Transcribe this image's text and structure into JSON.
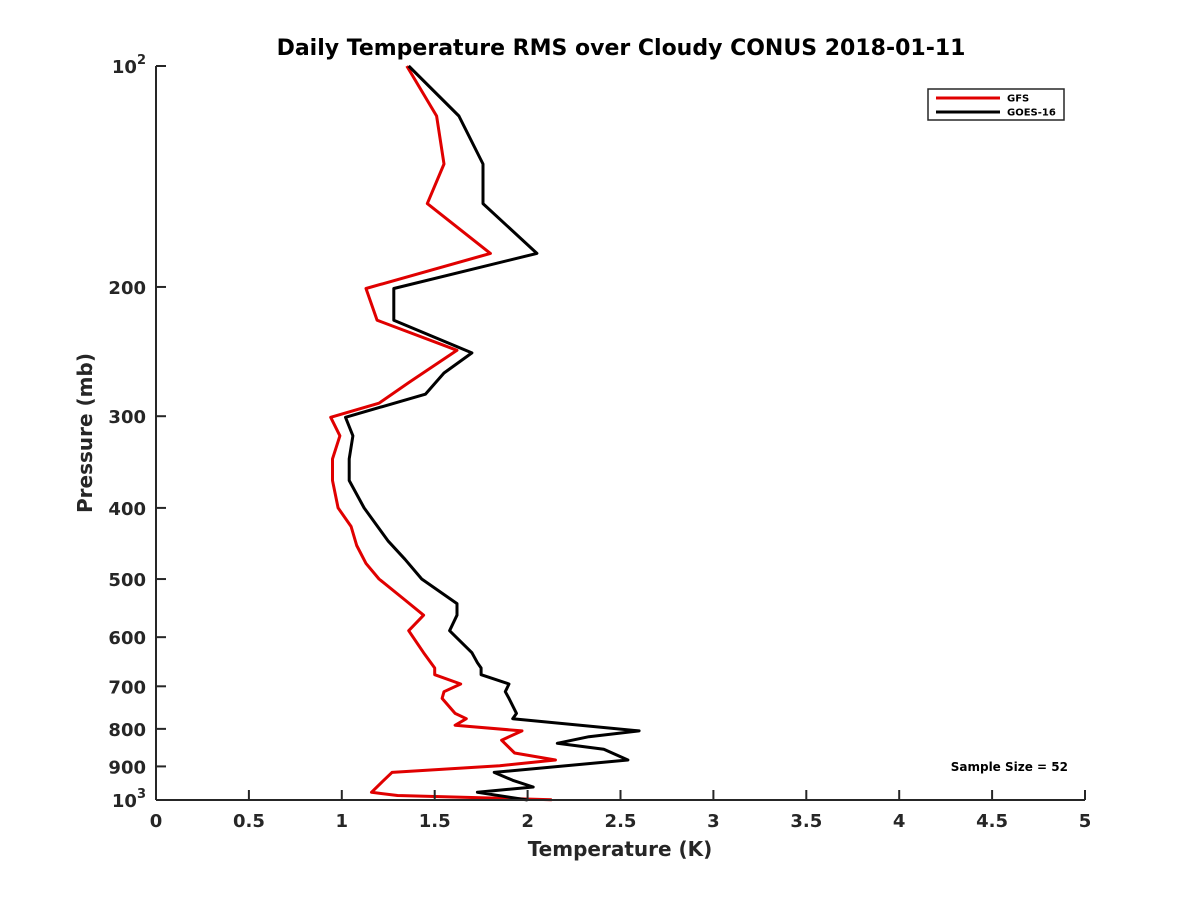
{
  "chart_data": {
    "type": "line",
    "title": "Daily Temperature RMS over Cloudy CONUS 2018-01-11",
    "xlabel": "Temperature (K)",
    "ylabel": "Pressure (mb)",
    "xlim": [
      0,
      5
    ],
    "ylim": [
      1000,
      100
    ],
    "yscale": "log",
    "y_reversed": true,
    "grid": false,
    "legend_position": "top-right",
    "x_ticks": [
      0,
      0.5,
      1,
      1.5,
      2,
      2.5,
      3,
      3.5,
      4,
      4.5,
      5
    ],
    "x_tick_labels": [
      "0",
      "0.5",
      "1",
      "1.5",
      "2",
      "2.5",
      "3",
      "3.5",
      "4",
      "4.5",
      "5"
    ],
    "y_ticks": [
      100,
      200,
      300,
      400,
      500,
      600,
      700,
      800,
      900,
      1000
    ],
    "y_tick_labels": [
      {
        "base": "10",
        "exp": "2"
      },
      {
        "base": "200",
        "exp": ""
      },
      {
        "base": "300",
        "exp": ""
      },
      {
        "base": "400",
        "exp": ""
      },
      {
        "base": "500",
        "exp": ""
      },
      {
        "base": "600",
        "exp": ""
      },
      {
        "base": "700",
        "exp": ""
      },
      {
        "base": "800",
        "exp": ""
      },
      {
        "base": "900",
        "exp": ""
      },
      {
        "base": "10",
        "exp": "3"
      }
    ],
    "annotation": "Sample Size = 52",
    "series": [
      {
        "name": "GFS",
        "color": "#e00000",
        "points": [
          [
            1.35,
            100
          ],
          [
            1.51,
            117
          ],
          [
            1.55,
            136
          ],
          [
            1.46,
            154
          ],
          [
            1.8,
            180
          ],
          [
            1.13,
            201
          ],
          [
            1.19,
            222
          ],
          [
            1.62,
            244
          ],
          [
            1.36,
            270
          ],
          [
            1.2,
            288
          ],
          [
            0.94,
            301
          ],
          [
            0.99,
            319
          ],
          [
            0.95,
            343
          ],
          [
            0.95,
            367
          ],
          [
            0.98,
            400
          ],
          [
            1.05,
            424
          ],
          [
            1.08,
            450
          ],
          [
            1.13,
            476
          ],
          [
            1.2,
            500
          ],
          [
            1.34,
            534
          ],
          [
            1.44,
            560
          ],
          [
            1.36,
            588
          ],
          [
            1.44,
            630
          ],
          [
            1.5,
            661
          ],
          [
            1.5,
            675
          ],
          [
            1.64,
            695
          ],
          [
            1.55,
            712
          ],
          [
            1.54,
            727
          ],
          [
            1.61,
            762
          ],
          [
            1.67,
            775
          ],
          [
            1.61,
            791
          ],
          [
            1.97,
            805
          ],
          [
            1.86,
            829
          ],
          [
            1.93,
            863
          ],
          [
            2.15,
            882
          ],
          [
            1.85,
            898
          ],
          [
            1.27,
            917
          ],
          [
            1.22,
            943
          ],
          [
            1.16,
            976
          ],
          [
            1.3,
            986
          ],
          [
            2.13,
            999
          ]
        ]
      },
      {
        "name": "GOES-16",
        "color": "#000000",
        "points": [
          [
            1.36,
            100
          ],
          [
            1.63,
            117
          ],
          [
            1.76,
            136
          ],
          [
            1.76,
            154
          ],
          [
            2.05,
            180
          ],
          [
            1.28,
            201
          ],
          [
            1.28,
            222
          ],
          [
            1.7,
            246
          ],
          [
            1.55,
            262
          ],
          [
            1.45,
            280
          ],
          [
            1.02,
            301
          ],
          [
            1.06,
            319
          ],
          [
            1.04,
            343
          ],
          [
            1.04,
            367
          ],
          [
            1.12,
            400
          ],
          [
            1.25,
            444
          ],
          [
            1.34,
            470
          ],
          [
            1.43,
            500
          ],
          [
            1.62,
            540
          ],
          [
            1.62,
            560
          ],
          [
            1.58,
            588
          ],
          [
            1.7,
            630
          ],
          [
            1.73,
            650
          ],
          [
            1.75,
            661
          ],
          [
            1.75,
            675
          ],
          [
            1.9,
            695
          ],
          [
            1.88,
            712
          ],
          [
            1.9,
            727
          ],
          [
            1.94,
            762
          ],
          [
            1.92,
            775
          ],
          [
            2.6,
            805
          ],
          [
            2.33,
            820
          ],
          [
            2.16,
            837
          ],
          [
            2.41,
            853
          ],
          [
            2.54,
            882
          ],
          [
            1.82,
            917
          ],
          [
            1.92,
            940
          ],
          [
            2.03,
            960
          ],
          [
            1.73,
            976
          ],
          [
            2.0,
            1000
          ]
        ]
      }
    ]
  }
}
